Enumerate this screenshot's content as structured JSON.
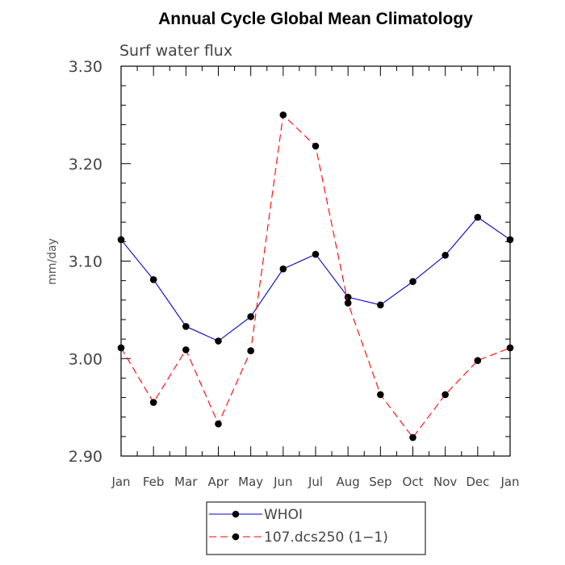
{
  "chart_data": {
    "type": "line",
    "title": "Annual Cycle Global Mean Climatology",
    "subtitle": "Surf water flux",
    "xlabel": "",
    "ylabel": "mm/day",
    "categories": [
      "Jan",
      "Feb",
      "Mar",
      "Apr",
      "May",
      "Jun",
      "Jul",
      "Aug",
      "Sep",
      "Oct",
      "Nov",
      "Dec",
      "Jan"
    ],
    "ylim": [
      2.9,
      3.3
    ],
    "yticks": [
      "2.90",
      "3.00",
      "3.10",
      "3.20",
      "3.30"
    ],
    "grid": false,
    "legend_position": "bottom",
    "series": [
      {
        "name": "WHOI",
        "color": "#0000cc",
        "dash": "solid",
        "marker": "filled-circle",
        "values": [
          3.122,
          3.081,
          3.033,
          3.018,
          3.043,
          3.092,
          3.107,
          3.063,
          3.055,
          3.079,
          3.106,
          3.145,
          3.122
        ]
      },
      {
        "name": "107.dcs250 (1−1)",
        "color": "#ff0000",
        "dash": "dashed",
        "marker": "filled-circle",
        "values": [
          3.011,
          2.955,
          3.009,
          2.933,
          3.008,
          3.25,
          3.218,
          3.057,
          2.963,
          2.919,
          2.963,
          2.998,
          3.011
        ]
      }
    ]
  }
}
